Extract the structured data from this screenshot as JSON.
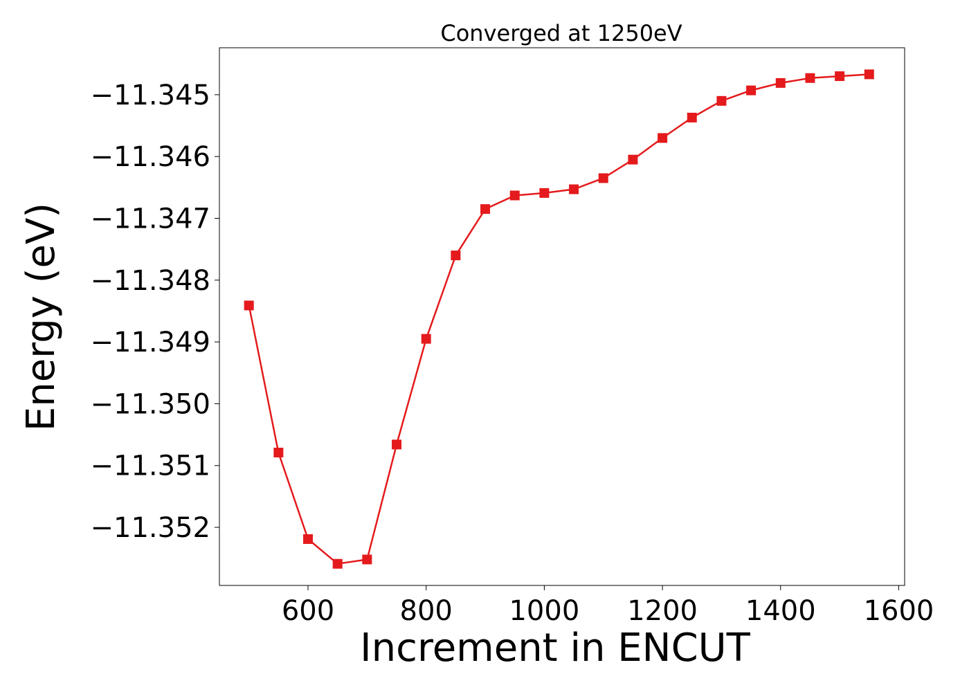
{
  "chart_data": {
    "type": "line",
    "title": "Converged at 1250eV",
    "xlabel": "Increment in ENCUT",
    "ylabel": "Energy (eV)",
    "xlim": [
      450,
      1610
    ],
    "ylim": [
      -11.35294,
      -11.34424
    ],
    "x_ticks": [
      600,
      800,
      1000,
      1200,
      1400,
      1600
    ],
    "x_tick_labels": [
      "600",
      "800",
      "1000",
      "1200",
      "1400",
      "1600"
    ],
    "y_ticks": [
      -11.345,
      -11.346,
      -11.347,
      -11.348,
      -11.349,
      -11.35,
      -11.351,
      -11.352
    ],
    "y_tick_labels": [
      "−11.345",
      "−11.346",
      "−11.347",
      "−11.348",
      "−11.349",
      "−11.350",
      "−11.351",
      "−11.352"
    ],
    "grid": false,
    "marker": "square",
    "series": [
      {
        "color": "#e41a1c",
        "x": [
          500,
          550,
          600,
          650,
          700,
          750,
          800,
          850,
          900,
          950,
          1000,
          1050,
          1100,
          1150,
          1200,
          1250,
          1300,
          1350,
          1400,
          1450,
          1500,
          1550
        ],
        "y": [
          -11.34841,
          -11.35079,
          -11.35219,
          -11.35259,
          -11.35252,
          -11.35066,
          -11.34895,
          -11.3476,
          -11.34685,
          -11.34663,
          -11.34659,
          -11.34653,
          -11.34635,
          -11.34605,
          -11.3457,
          -11.34537,
          -11.3451,
          -11.34493,
          -11.34481,
          -11.34473,
          -11.3447,
          -11.34467
        ]
      }
    ]
  }
}
